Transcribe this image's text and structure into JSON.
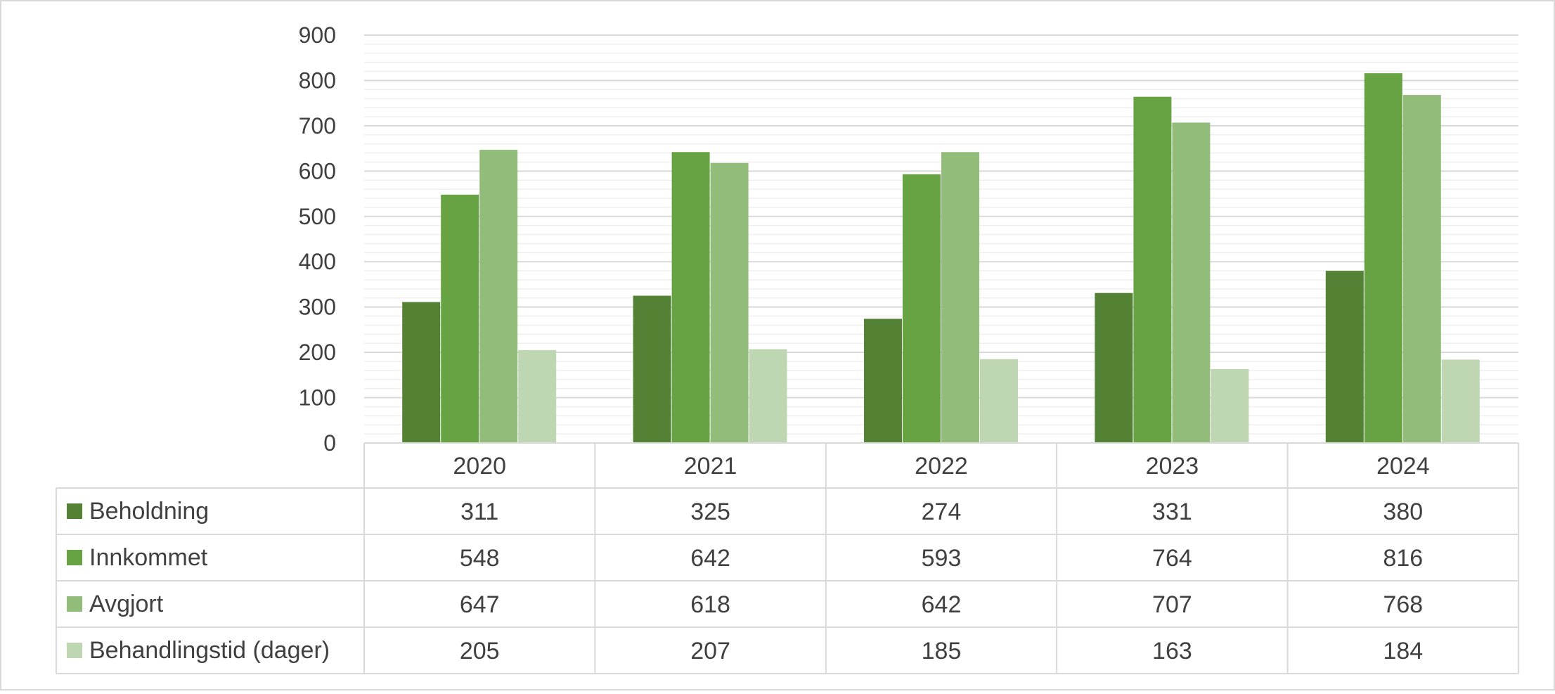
{
  "chart_data": {
    "type": "bar",
    "title": "",
    "xlabel": "",
    "ylabel": "",
    "categories": [
      "2020",
      "2021",
      "2022",
      "2023",
      "2024"
    ],
    "ylim": [
      0,
      900
    ],
    "yticks": [
      "0",
      "100",
      "200",
      "300",
      "400",
      "500",
      "600",
      "700",
      "800",
      "900"
    ],
    "grid": true,
    "legend": "data-table",
    "series": [
      {
        "name": "Beholdning",
        "color": "#548235",
        "values": [
          311,
          325,
          274,
          331,
          380
        ]
      },
      {
        "name": "Innkommet",
        "color": "#67A342",
        "values": [
          548,
          642,
          593,
          764,
          816
        ]
      },
      {
        "name": "Avgjort",
        "color": "#91BC79",
        "values": [
          647,
          618,
          642,
          707,
          768
        ]
      },
      {
        "name": "Behandlingstid (dager)",
        "color": "#BFD6B3",
        "values": [
          205,
          207,
          185,
          163,
          184
        ]
      }
    ]
  }
}
